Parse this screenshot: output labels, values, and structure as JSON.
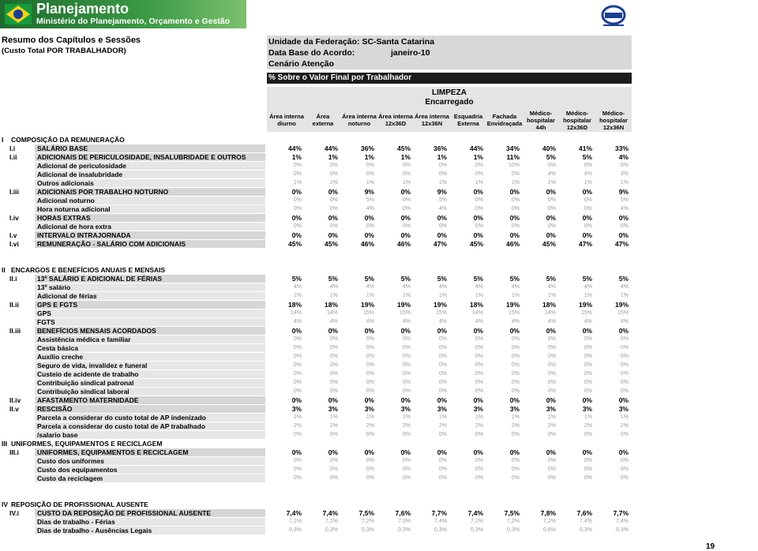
{
  "header": {
    "logo_title": "Planejamento",
    "logo_subtitle": "Ministério do Planejamento, Orçamento e Gestão"
  },
  "left_title": "Resumo dos Capítulos e Sessões",
  "left_subtitle": "(Custo Total POR TRABALHADOR)",
  "info": {
    "uf": "Unidade da Federação: SC-Santa Catarina",
    "data_base_label": "Data Base do Acordo:",
    "data_base_value": "janeiro-10",
    "cenario": "Cenário Atenção"
  },
  "bar_title": "% Sobre o Valor Final por Trabalhador",
  "group": {
    "service": "LIMPEZA",
    "role": "Encarregado"
  },
  "columns": [
    [
      "Área interna",
      "diurno"
    ],
    [
      "Área",
      "externa"
    ],
    [
      "Área interna",
      "noturno"
    ],
    [
      "Área interna",
      "12x36D"
    ],
    [
      "Área interna",
      "12x36N"
    ],
    [
      "Esquadria",
      "Externa"
    ],
    [
      "Fachada",
      "Envidraçada"
    ],
    [
      "Médico-",
      "hospitalar",
      "44h"
    ],
    [
      "Médico-",
      "hospitalar",
      "12x36D"
    ],
    [
      "Médico-",
      "hospitalar",
      "12x36N"
    ]
  ],
  "sections": [
    {
      "code": "I",
      "title": "COMPOSIÇÃO DA REMUNERAÇÃO",
      "rows": [
        {
          "code": "I.i",
          "label": "SALÁRIO BASE",
          "values": [
            "44%",
            "44%",
            "36%",
            "45%",
            "36%",
            "44%",
            "34%",
            "40%",
            "41%",
            "33%"
          ],
          "items": []
        },
        {
          "code": "I.ii",
          "label": "ADICIONAIS DE PERICULOSIDADE, INSALUBRIDADE E OUTROS",
          "values": [
            "1%",
            "1%",
            "1%",
            "1%",
            "1%",
            "1%",
            "11%",
            "5%",
            "5%",
            "4%"
          ],
          "items": [
            {
              "label": "Adicional de periculosidade",
              "values": [
                "0%",
                "0%",
                "0%",
                "0%",
                "0%",
                "0%",
                "10%",
                "0%",
                "0%",
                "0%"
              ]
            },
            {
              "label": "Adicional de insalubridade",
              "values": [
                "0%",
                "0%",
                "0%",
                "0%",
                "0%",
                "0%",
                "0%",
                "4%",
                "4%",
                "3%"
              ]
            },
            {
              "label": "Outros adicionais",
              "values": [
                "1%",
                "1%",
                "1%",
                "1%",
                "1%",
                "1%",
                "1%",
                "1%",
                "1%",
                "1%"
              ]
            }
          ]
        },
        {
          "code": "I.iii",
          "label": "ADICIONAIS POR TRABALHO NOTURNO",
          "values": [
            "0%",
            "0%",
            "9%",
            "0%",
            "9%",
            "0%",
            "0%",
            "0%",
            "0%",
            "9%"
          ],
          "items": [
            {
              "label": "Adicional noturno",
              "values": [
                "0%",
                "0%",
                "5%",
                "0%",
                "5%",
                "0%",
                "0%",
                "0%",
                "0%",
                "5%"
              ]
            },
            {
              "label": "Hora noturna adicional",
              "values": [
                "0%",
                "0%",
                "4%",
                "0%",
                "4%",
                "0%",
                "0%",
                "0%",
                "0%",
                "4%"
              ]
            }
          ]
        },
        {
          "code": "I.iv",
          "label": "HORAS EXTRAS",
          "values": [
            "0%",
            "0%",
            "0%",
            "0%",
            "0%",
            "0%",
            "0%",
            "0%",
            "0%",
            "0%"
          ],
          "items": [
            {
              "label": "Adicional de hora extra",
              "values": [
                "0%",
                "0%",
                "0%",
                "0%",
                "0%",
                "0%",
                "0%",
                "0%",
                "0%",
                "0%"
              ]
            }
          ]
        },
        {
          "code": "I.v",
          "label": "INTERVALO INTRAJORNADA",
          "values": [
            "0%",
            "0%",
            "0%",
            "0%",
            "0%",
            "0%",
            "0%",
            "0%",
            "0%",
            "0%"
          ],
          "items": []
        },
        {
          "code": "I.vi",
          "label": "REMUNERAÇÃO - SALÁRIO COM ADICIONAIS",
          "values": [
            "45%",
            "45%",
            "46%",
            "46%",
            "47%",
            "45%",
            "46%",
            "45%",
            "47%",
            "47%"
          ],
          "items": []
        }
      ]
    },
    {
      "code": "II",
      "title": "ENCARGOS E BENEFÍCIOS ANUAIS E MENSAIS",
      "rows": [
        {
          "code": "II.i",
          "label": "13º SALÁRIO E ADICIONAL DE FÉRIAS",
          "values": [
            "5%",
            "5%",
            "5%",
            "5%",
            "5%",
            "5%",
            "5%",
            "5%",
            "5%",
            "5%"
          ],
          "items": [
            {
              "label": "13º salário",
              "values": [
                "4%",
                "4%",
                "4%",
                "4%",
                "4%",
                "4%",
                "4%",
                "4%",
                "4%",
                "4%"
              ]
            },
            {
              "label": "Adicional de férias",
              "values": [
                "1%",
                "1%",
                "1%",
                "1%",
                "1%",
                "1%",
                "1%",
                "1%",
                "1%",
                "1%"
              ]
            }
          ]
        },
        {
          "code": "II.ii",
          "label": "GPS E FGTS",
          "values": [
            "18%",
            "18%",
            "19%",
            "19%",
            "19%",
            "18%",
            "19%",
            "18%",
            "19%",
            "19%"
          ],
          "items": [
            {
              "label": "GPS",
              "values": [
                "14%",
                "14%",
                "15%",
                "15%",
                "15%",
                "14%",
                "15%",
                "14%",
                "15%",
                "15%"
              ]
            },
            {
              "label": "FGTS",
              "values": [
                "4%",
                "4%",
                "4%",
                "4%",
                "4%",
                "4%",
                "4%",
                "4%",
                "4%",
                "4%"
              ]
            }
          ]
        },
        {
          "code": "II.iii",
          "label": "BENEFÍCIOS MENSAIS ACORDADOS",
          "values": [
            "0%",
            "0%",
            "0%",
            "0%",
            "0%",
            "0%",
            "0%",
            "0%",
            "0%",
            "0%"
          ],
          "items": [
            {
              "label": "Assistência médica e familiar",
              "values": [
                "0%",
                "0%",
                "0%",
                "0%",
                "0%",
                "0%",
                "0%",
                "0%",
                "0%",
                "0%"
              ]
            },
            {
              "label": "Cesta básica",
              "values": [
                "0%",
                "0%",
                "0%",
                "0%",
                "0%",
                "0%",
                "0%",
                "0%",
                "0%",
                "0%"
              ]
            },
            {
              "label": "Auxílio creche",
              "values": [
                "0%",
                "0%",
                "0%",
                "0%",
                "0%",
                "0%",
                "0%",
                "0%",
                "0%",
                "0%"
              ]
            },
            {
              "label": "Seguro de vida, invalidez e funeral",
              "values": [
                "0%",
                "0%",
                "0%",
                "0%",
                "0%",
                "0%",
                "0%",
                "0%",
                "0%",
                "0%"
              ]
            },
            {
              "label": "Custeio de acidente de trabalho",
              "values": [
                "0%",
                "0%",
                "0%",
                "0%",
                "0%",
                "0%",
                "0%",
                "0%",
                "0%",
                "0%"
              ]
            },
            {
              "label": "Contribuição sindical patronal",
              "values": [
                "0%",
                "0%",
                "0%",
                "0%",
                "0%",
                "0%",
                "0%",
                "0%",
                "0%",
                "0%"
              ]
            },
            {
              "label": "Contribuição sindical laboral",
              "values": [
                "0%",
                "0%",
                "0%",
                "0%",
                "0%",
                "0%",
                "0%",
                "0%",
                "0%",
                "0%"
              ]
            }
          ]
        },
        {
          "code": "II.iv",
          "label": "AFASTAMENTO MATERNIDADE",
          "values": [
            "0%",
            "0%",
            "0%",
            "0%",
            "0%",
            "0%",
            "0%",
            "0%",
            "0%",
            "0%"
          ],
          "items": []
        },
        {
          "code": "II.v",
          "label": "RESCISÃO",
          "values": [
            "3%",
            "3%",
            "3%",
            "3%",
            "3%",
            "3%",
            "3%",
            "3%",
            "3%",
            "3%"
          ],
          "items": [
            {
              "label": "Parcela a considerar do custo total de AP indenizado",
              "values": [
                "1%",
                "1%",
                "1%",
                "1%",
                "1%",
                "1%",
                "1%",
                "1%",
                "1%",
                "1%"
              ]
            },
            {
              "label": "Parcela a considerar do custo total de AP trabalhado",
              "values": [
                "2%",
                "2%",
                "2%",
                "2%",
                "2%",
                "2%",
                "2%",
                "2%",
                "2%",
                "2%"
              ]
            },
            {
              "label": "/salario base",
              "values": [
                "0%",
                "0%",
                "0%",
                "0%",
                "0%",
                "0%",
                "0%",
                "0%",
                "0%",
                "0%"
              ]
            }
          ]
        }
      ]
    },
    {
      "code": "III",
      "title": "UNIFORMES, EQUIPAMENTOS E RECICLAGEM",
      "rows": [
        {
          "code": "III.i",
          "label": "UNIFORMES, EQUIPAMENTOS E RECICLAGEM",
          "values": [
            "0%",
            "0%",
            "0%",
            "0%",
            "0%",
            "0%",
            "0%",
            "0%",
            "0%",
            "0%"
          ],
          "items": [
            {
              "label": "Custo dos uniformes",
              "values": [
                "0%",
                "0%",
                "0%",
                "0%",
                "0%",
                "0%",
                "0%",
                "0%",
                "0%",
                "0%"
              ]
            },
            {
              "label": "Custo dos equipamentos",
              "values": [
                "0%",
                "0%",
                "0%",
                "0%",
                "0%",
                "0%",
                "0%",
                "0%",
                "0%",
                "0%"
              ]
            },
            {
              "label": "Custo da reciclagem",
              "values": [
                "0%",
                "0%",
                "0%",
                "0%",
                "0%",
                "0%",
                "0%",
                "0%",
                "0%",
                "0%"
              ]
            }
          ]
        }
      ]
    },
    {
      "code": "IV",
      "title": "REPOSIÇÃO DE PROFISSIONAL AUSENTE",
      "rows": [
        {
          "code": "IV.i",
          "label": "CUSTO DA REPOSIÇÃO DE PROFISSIONAL AUSENTE",
          "values": [
            "7,4%",
            "7,4%",
            "7,5%",
            "7,6%",
            "7,7%",
            "7,4%",
            "7,5%",
            "7,8%",
            "7,6%",
            "7,7%"
          ],
          "items": [
            {
              "label": "Dias de trabalho - Férias",
              "values": [
                "7,1%",
                "7,1%",
                "7,2%",
                "7,3%",
                "7,4%",
                "7,1%",
                "7,2%",
                "7,2%",
                "7,4%",
                "7,4%"
              ]
            },
            {
              "label": "Dias de trabalho - Ausências Legais",
              "values": [
                "0,3%",
                "0,3%",
                "0,3%",
                "0,3%",
                "0,3%",
                "0,3%",
                "0,3%",
                "0,6%",
                "0,3%",
                "0,3%"
              ]
            }
          ]
        }
      ]
    }
  ],
  "page_number": "19"
}
